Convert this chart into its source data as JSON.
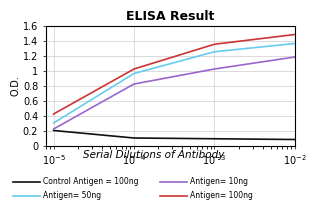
{
  "title": "ELISA Result",
  "ylabel": "O.D.",
  "xlabel": "Serial Dilutions of Antibody",
  "x_ticks": [
    0.01,
    0.001,
    0.0001,
    1e-05
  ],
  "x_tick_labels": [
    "10^-2",
    "10^-3",
    "10^-4",
    "10^-5"
  ],
  "ylim": [
    0,
    1.6
  ],
  "yticks": [
    0,
    0.2,
    0.4,
    0.6,
    0.8,
    1.0,
    1.2,
    1.4,
    1.6
  ],
  "lines": [
    {
      "label": "Control Antigen = 100ng",
      "color": "#111111",
      "y_values": [
        0.08,
        0.09,
        0.1,
        0.2
      ]
    },
    {
      "label": "Antigen= 10ng",
      "color": "#9966cc",
      "y_values": [
        1.18,
        1.02,
        0.82,
        0.22
      ]
    },
    {
      "label": "Antigen= 50ng",
      "color": "#66ccee",
      "y_values": [
        1.36,
        1.25,
        0.96,
        0.3
      ]
    },
    {
      "label": "Antigen= 100ng",
      "color": "#cc3333",
      "y_values": [
        1.48,
        1.35,
        1.02,
        0.42
      ]
    }
  ],
  "background_color": "#ffffff",
  "grid_color": "#cccccc",
  "title_fontsize": 9,
  "label_fontsize": 7,
  "legend_fontsize": 5.5
}
